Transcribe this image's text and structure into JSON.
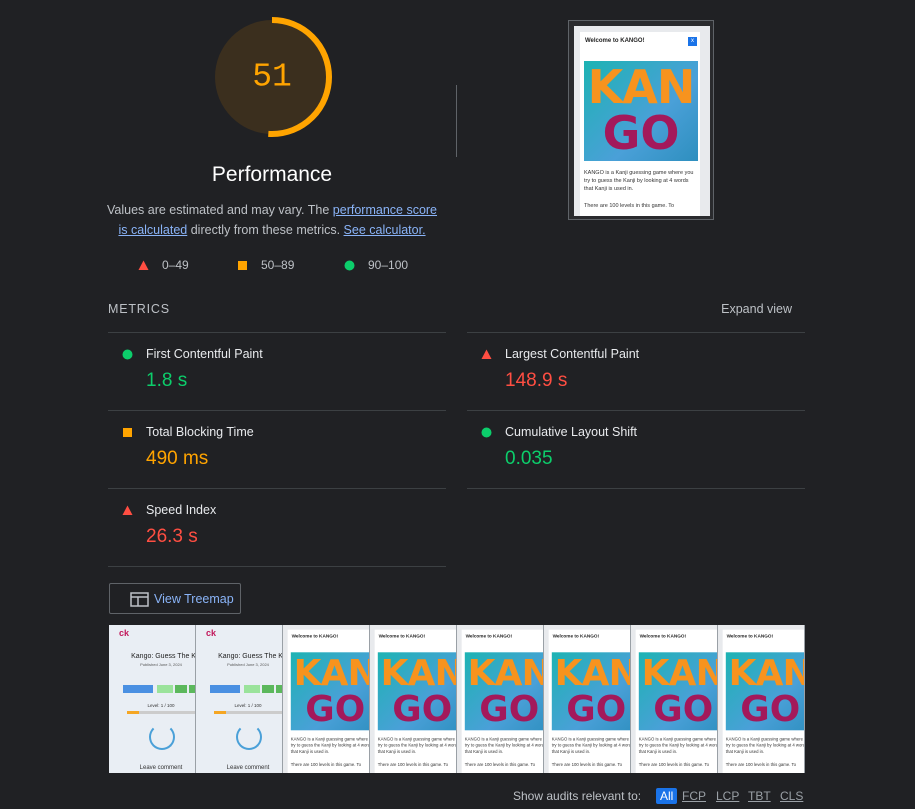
{
  "gauge": {
    "score": 51,
    "color": "#ffa400",
    "label": "Performance"
  },
  "description": {
    "prefix": "Values are estimated and may vary. The ",
    "link1": "performance score is calculated",
    "middle": " directly from these metrics. ",
    "link2": "See calculator."
  },
  "legend": [
    {
      "range": "0–49",
      "shape": "triangle",
      "color": "#ff4e42"
    },
    {
      "range": "50–89",
      "shape": "square",
      "color": "#ffa400"
    },
    {
      "range": "90–100",
      "shape": "circle",
      "color": "#0cce6b"
    }
  ],
  "metrics": {
    "title": "METRICS",
    "toggle": "Expand view",
    "items": [
      {
        "title": "First Contentful Paint",
        "value": "1.8 s",
        "shape": "circle",
        "color": "#0cce6b"
      },
      {
        "title": "Largest Contentful Paint",
        "value": "148.9 s",
        "shape": "triangle",
        "color": "#ff4e42"
      },
      {
        "title": "Total Blocking Time",
        "value": "490 ms",
        "shape": "square",
        "color": "#ffa400"
      },
      {
        "title": "Cumulative Layout Shift",
        "value": "0.035",
        "shape": "circle",
        "color": "#0cce6b"
      },
      {
        "title": "Speed Index",
        "value": "26.3 s",
        "shape": "triangle",
        "color": "#ff4e42"
      }
    ]
  },
  "treemap": "View Treemap",
  "screenshot": {
    "title": "Welcome to KANGO!",
    "close": "x",
    "logo_top": "KAN",
    "logo_bottom": "GO",
    "text1": "KANGO is a Kanji guessing game where you try to guess the Kanji by looking at 4 words that Kanji is used in.",
    "text2": "There are 100 levels in this game. To"
  },
  "filmstrip": {
    "loading": {
      "brand": "ck",
      "heading": "Kango: Guess The Kanji",
      "date": "Published June 3, 2024",
      "level": "Level: 1 / 100",
      "comment": "Leave comment"
    },
    "frames": [
      "loading",
      "loading",
      "modal",
      "modal",
      "modal",
      "modal",
      "modal",
      "modal"
    ]
  },
  "filter": {
    "label": "Show audits relevant to:",
    "options": [
      "All",
      "FCP",
      "LCP",
      "TBT",
      "CLS"
    ]
  }
}
